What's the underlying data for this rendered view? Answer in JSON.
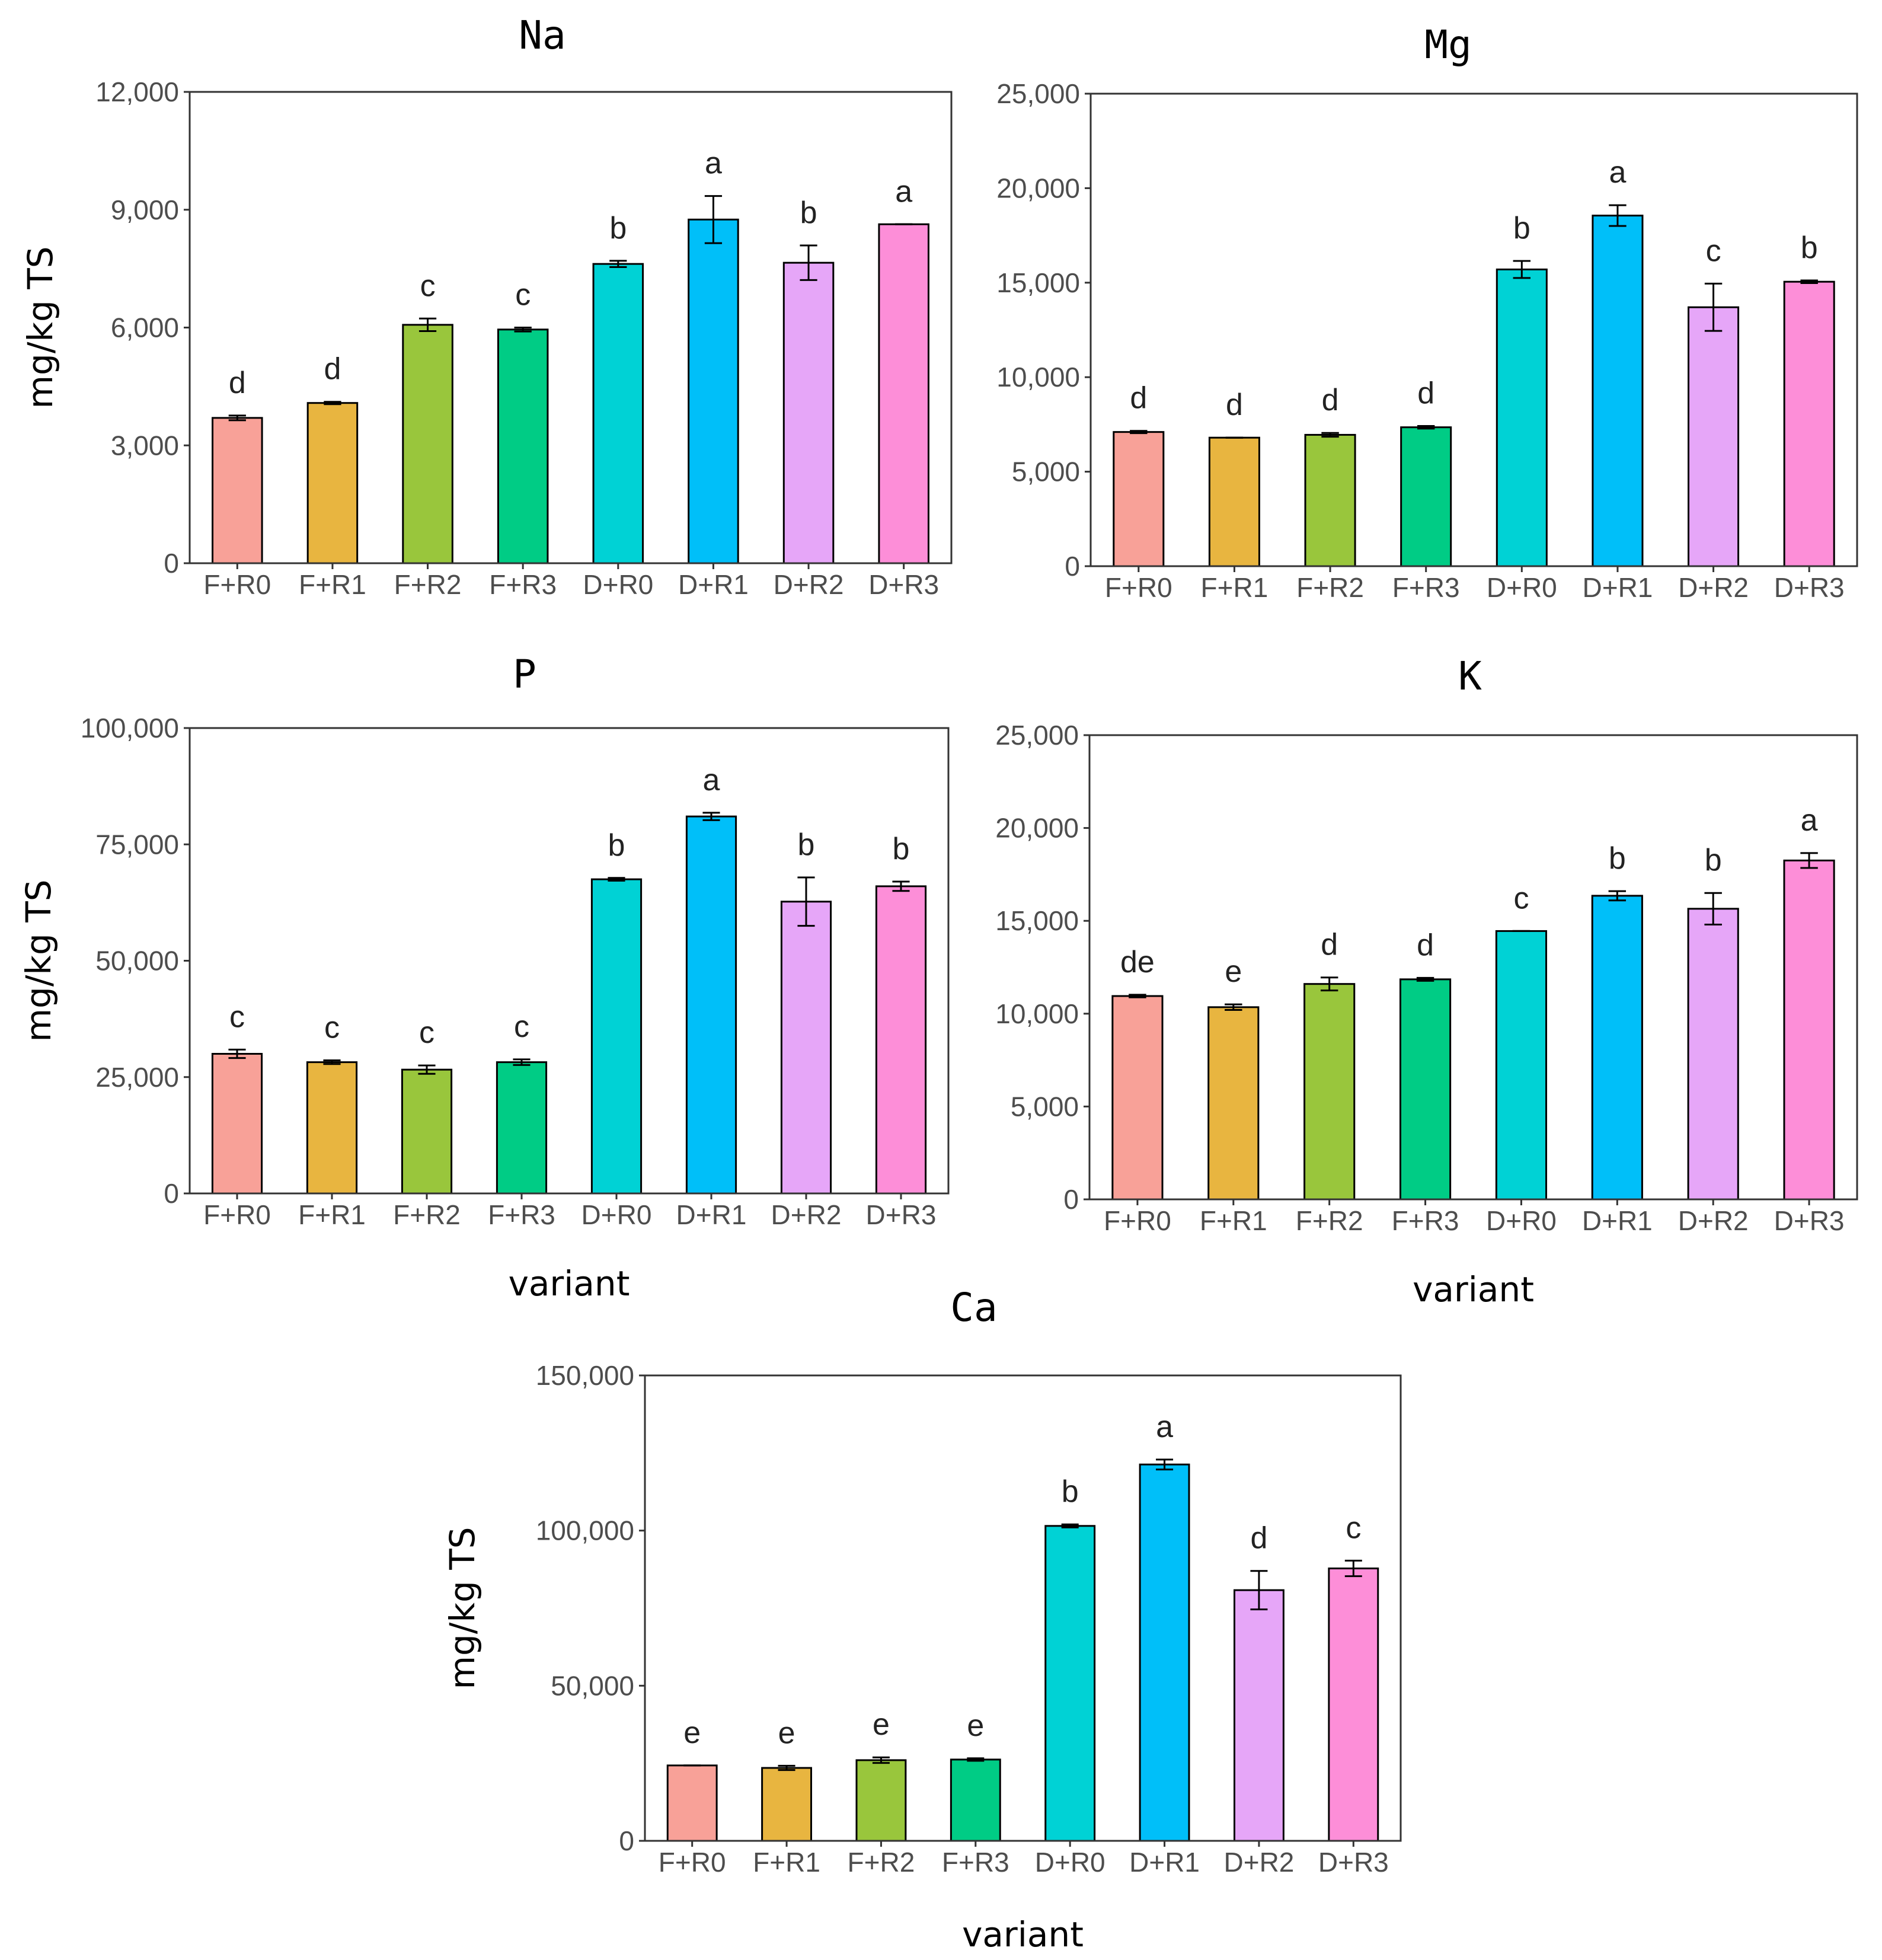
{
  "colors": {
    "F+R0": "#f8a198",
    "F+R1": "#e8b540",
    "F+R2": "#99c63c",
    "F+R3": "#00cc85",
    "D+R0": "#00d2d5",
    "D+R1": "#00bff9",
    "D+R2": "#e6a6f8",
    "D+R3": "#fd8ed8",
    "bar_outline": "#000000",
    "panel_border": "#333333",
    "tick_text": "#4d4d4d"
  },
  "chart_data": [
    {
      "type": "bar",
      "title": "Na",
      "xlabel": "",
      "ylabel": "mg/kg TS",
      "ylim": [
        0,
        12000
      ],
      "yticks": [
        0,
        3000,
        6000,
        9000,
        12000
      ],
      "ytick_labels": [
        "0",
        "3,000",
        "6,000",
        "9,000",
        "12,000"
      ],
      "categories": [
        "F+R0",
        "F+R1",
        "F+R2",
        "F+R3",
        "D+R0",
        "D+R1",
        "D+R2",
        "D+R3"
      ],
      "values": [
        3700,
        4080,
        6070,
        5950,
        7620,
        8750,
        7650,
        8630
      ],
      "errors": [
        60,
        30,
        160,
        50,
        80,
        600,
        440,
        0
      ],
      "letters": [
        "d",
        "d",
        "c",
        "c",
        "b",
        "a",
        "b",
        "a"
      ]
    },
    {
      "type": "bar",
      "title": "Mg",
      "xlabel": "",
      "ylabel": "",
      "ylim": [
        0,
        25000
      ],
      "yticks": [
        0,
        5000,
        10000,
        15000,
        20000,
        25000
      ],
      "ytick_labels": [
        "0",
        "5,000",
        "10,000",
        "15,000",
        "20,000",
        "25,000"
      ],
      "categories": [
        "F+R0",
        "F+R1",
        "F+R2",
        "F+R3",
        "D+R0",
        "D+R1",
        "D+R2",
        "D+R3"
      ],
      "values": [
        7100,
        6800,
        6950,
        7350,
        15700,
        18550,
        13700,
        15050
      ],
      "errors": [
        60,
        0,
        100,
        70,
        450,
        550,
        1250,
        70
      ],
      "letters": [
        "d",
        "d",
        "d",
        "d",
        "b",
        "a",
        "c",
        "b"
      ]
    },
    {
      "type": "bar",
      "title": "P",
      "xlabel": "variant",
      "ylabel": "mg/kg TS",
      "ylim": [
        0,
        100000
      ],
      "yticks": [
        0,
        25000,
        50000,
        75000,
        100000
      ],
      "ytick_labels": [
        "0",
        "25,000",
        "50,000",
        "75,000",
        "100,000"
      ],
      "categories": [
        "F+R0",
        "F+R1",
        "F+R2",
        "F+R3",
        "D+R0",
        "D+R1",
        "D+R2",
        "D+R3"
      ],
      "values": [
        30000,
        28200,
        26600,
        28200,
        67500,
        81000,
        62700,
        66000
      ],
      "errors": [
        900,
        400,
        900,
        600,
        300,
        800,
        5200,
        1000
      ],
      "letters": [
        "c",
        "c",
        "c",
        "c",
        "b",
        "a",
        "b",
        "b"
      ]
    },
    {
      "type": "bar",
      "title": "K",
      "xlabel": "variant",
      "ylabel": "",
      "ylim": [
        0,
        25000
      ],
      "yticks": [
        0,
        5000,
        10000,
        15000,
        20000,
        25000
      ],
      "ytick_labels": [
        "0",
        "5,000",
        "10,000",
        "15,000",
        "20,000",
        "25,000"
      ],
      "categories": [
        "F+R0",
        "F+R1",
        "F+R2",
        "F+R3",
        "D+R0",
        "D+R1",
        "D+R2",
        "D+R3"
      ],
      "values": [
        10950,
        10350,
        11600,
        11850,
        14450,
        16350,
        15650,
        18250
      ],
      "errors": [
        70,
        150,
        350,
        80,
        0,
        250,
        850,
        400
      ],
      "letters": [
        "de",
        "e",
        "d",
        "d",
        "c",
        "b",
        "b",
        "a"
      ]
    },
    {
      "type": "bar",
      "title": "Ca",
      "xlabel": "variant",
      "ylabel": "mg/kg TS",
      "ylim": [
        0,
        150000
      ],
      "yticks": [
        0,
        50000,
        100000,
        150000
      ],
      "ytick_labels": [
        "0",
        "50,000",
        "100,000",
        "150,000"
      ],
      "categories": [
        "F+R0",
        "F+R1",
        "F+R2",
        "F+R3",
        "D+R0",
        "D+R1",
        "D+R2",
        "D+R3"
      ],
      "values": [
        24300,
        23500,
        26000,
        26200,
        101500,
        121300,
        80800,
        87800
      ],
      "errors": [
        0,
        700,
        900,
        400,
        500,
        1600,
        6200,
        2500
      ],
      "letters": [
        "e",
        "e",
        "e",
        "e",
        "b",
        "a",
        "d",
        "c"
      ]
    }
  ]
}
